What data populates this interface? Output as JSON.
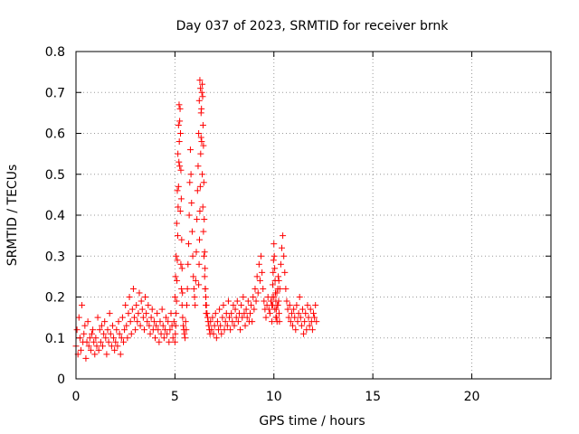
{
  "chart_data": {
    "type": "scatter",
    "title": "Day 037 of 2023, SRMTID for receiver brnk",
    "xlabel": "GPS time / hours",
    "ylabel": "SRMTID / TECUs",
    "xlim": [
      0,
      24
    ],
    "ylim": [
      0,
      0.8
    ],
    "grid": true,
    "marker": "+",
    "color": "#ff0000",
    "xticks": [
      0,
      5,
      10,
      15,
      20
    ],
    "yticks": [
      0,
      0.1,
      0.2,
      0.3,
      0.4,
      0.5,
      0.6,
      0.7,
      0.8
    ],
    "xtick_labels": [
      "0",
      "5",
      "10",
      "15",
      "20"
    ],
    "ytick_labels": [
      "0",
      "0.1",
      "0.2",
      "0.3",
      "0.4",
      "0.5",
      "0.6",
      "0.7",
      "0.8"
    ],
    "series": [
      {
        "name": "SRMTID",
        "x": [
          0.0,
          0.05,
          0.1,
          0.15,
          0.2,
          0.25,
          0.3,
          0.35,
          0.4,
          0.45,
          0.5,
          0.55,
          0.6,
          0.65,
          0.7,
          0.75,
          0.8,
          0.85,
          0.9,
          0.95,
          1.0,
          1.05,
          1.1,
          1.15,
          1.2,
          1.25,
          1.3,
          1.35,
          1.4,
          1.45,
          1.5,
          1.55,
          1.6,
          1.65,
          1.7,
          1.75,
          1.8,
          1.85,
          1.9,
          1.95,
          2.0,
          2.05,
          2.1,
          2.15,
          2.2,
          2.25,
          2.3,
          2.35,
          2.4,
          2.45,
          2.5,
          2.55,
          2.6,
          2.65,
          2.7,
          2.75,
          2.8,
          2.85,
          2.9,
          2.95,
          3.0,
          3.05,
          3.1,
          3.15,
          3.2,
          3.25,
          3.3,
          3.35,
          3.4,
          3.45,
          3.5,
          3.55,
          3.6,
          3.65,
          3.7,
          3.75,
          3.8,
          3.85,
          3.9,
          3.95,
          4.0,
          4.05,
          4.1,
          4.15,
          4.2,
          4.25,
          4.3,
          4.35,
          4.4,
          4.45,
          4.5,
          4.55,
          4.6,
          4.65,
          4.7,
          4.75,
          4.8,
          4.85,
          4.9,
          4.95,
          5.0,
          5.03,
          5.06,
          5.09,
          5.12,
          5.15,
          5.18,
          5.21,
          5.24,
          5.27,
          5.3,
          5.33,
          5.36,
          5.39,
          5.42,
          5.45,
          5.48,
          5.51,
          5.54,
          5.57,
          5.6,
          5.63,
          5.66,
          5.69,
          5.72,
          5.75,
          5.78,
          5.81,
          5.84,
          5.87,
          5.9,
          5.93,
          5.96,
          5.99,
          6.02,
          6.05,
          6.08,
          6.11,
          6.14,
          6.17,
          6.2,
          6.23,
          6.26,
          6.29,
          6.32,
          6.35,
          6.38,
          6.41,
          6.44,
          6.47,
          6.5,
          6.53,
          6.56,
          6.59,
          6.62,
          6.65,
          6.68,
          6.71,
          6.74,
          6.77,
          6.8,
          6.85,
          6.9,
          6.95,
          7.0,
          7.05,
          7.1,
          7.15,
          7.2,
          7.25,
          7.3,
          7.35,
          7.4,
          7.45,
          7.5,
          7.55,
          7.6,
          7.65,
          7.7,
          7.75,
          7.8,
          7.85,
          7.9,
          7.95,
          8.0,
          8.05,
          8.1,
          8.15,
          8.2,
          8.25,
          8.3,
          8.35,
          8.4,
          8.45,
          8.5,
          8.55,
          8.6,
          8.65,
          8.7,
          8.75,
          8.8,
          8.85,
          8.9,
          8.95,
          9.0,
          9.05,
          9.1,
          9.15,
          9.2,
          9.25,
          9.3,
          9.35,
          9.4,
          9.45,
          9.5,
          9.55,
          9.6,
          9.65,
          9.7,
          9.75,
          9.8,
          9.85,
          9.9,
          9.95,
          10.0,
          10.05,
          10.1,
          10.15,
          10.2,
          10.25,
          10.3,
          10.35,
          10.4,
          10.45,
          10.5,
          10.55,
          10.6,
          10.65,
          10.7,
          10.75,
          10.8,
          10.85,
          10.9,
          10.95,
          11.0,
          11.05,
          11.1,
          11.15,
          11.2,
          11.25,
          11.3,
          11.35,
          11.4,
          11.45,
          11.5,
          11.55,
          11.6,
          11.65,
          11.7,
          11.75,
          11.8,
          11.85,
          11.9,
          11.95,
          12.0,
          12.05,
          12.1,
          12.15,
          5.0,
          5.02,
          5.04,
          5.06,
          5.08,
          5.1,
          5.12,
          5.14,
          5.16,
          5.18,
          5.2,
          5.22,
          5.24,
          5.26,
          5.28,
          5.3,
          5.32,
          5.34,
          5.36,
          5.38,
          6.2,
          6.22,
          6.24,
          6.26,
          6.28,
          6.3,
          6.32,
          6.34,
          6.36,
          6.38,
          6.4,
          6.42,
          6.44,
          6.46,
          6.48,
          6.5,
          6.52,
          6.54,
          6.56,
          6.58,
          9.9,
          9.92,
          9.94,
          9.96,
          9.98,
          10.0,
          10.02,
          10.04,
          10.06,
          10.08,
          10.1,
          10.12,
          10.14,
          10.16,
          10.18,
          10.2,
          10.22,
          10.24,
          10.26,
          10.28
        ],
        "y": [
          0.08,
          0.12,
          0.06,
          0.15,
          0.1,
          0.07,
          0.18,
          0.09,
          0.11,
          0.13,
          0.05,
          0.09,
          0.14,
          0.08,
          0.1,
          0.07,
          0.11,
          0.12,
          0.09,
          0.06,
          0.1,
          0.08,
          0.15,
          0.07,
          0.12,
          0.09,
          0.13,
          0.08,
          0.11,
          0.14,
          0.1,
          0.06,
          0.12,
          0.09,
          0.16,
          0.11,
          0.08,
          0.13,
          0.1,
          0.07,
          0.09,
          0.12,
          0.08,
          0.14,
          0.11,
          0.06,
          0.1,
          0.15,
          0.09,
          0.12,
          0.18,
          0.13,
          0.1,
          0.16,
          0.2,
          0.14,
          0.11,
          0.17,
          0.22,
          0.15,
          0.12,
          0.18,
          0.14,
          0.16,
          0.21,
          0.13,
          0.19,
          0.17,
          0.15,
          0.12,
          0.2,
          0.16,
          0.14,
          0.18,
          0.13,
          0.11,
          0.15,
          0.17,
          0.12,
          0.14,
          0.1,
          0.13,
          0.16,
          0.12,
          0.09,
          0.14,
          0.11,
          0.17,
          0.13,
          0.1,
          0.12,
          0.15,
          0.11,
          0.14,
          0.09,
          0.12,
          0.16,
          0.13,
          0.1,
          0.14,
          0.2,
          0.25,
          0.3,
          0.38,
          0.46,
          0.55,
          0.62,
          0.67,
          0.52,
          0.41,
          0.28,
          0.22,
          0.18,
          0.15,
          0.13,
          0.12,
          0.11,
          0.1,
          0.14,
          0.12,
          0.18,
          0.22,
          0.28,
          0.33,
          0.4,
          0.48,
          0.56,
          0.5,
          0.43,
          0.36,
          0.3,
          0.25,
          0.22,
          0.2,
          0.18,
          0.24,
          0.31,
          0.39,
          0.46,
          0.52,
          0.6,
          0.68,
          0.73,
          0.71,
          0.65,
          0.58,
          0.5,
          0.42,
          0.36,
          0.3,
          0.25,
          0.22,
          0.2,
          0.18,
          0.16,
          0.15,
          0.14,
          0.13,
          0.12,
          0.11,
          0.14,
          0.12,
          0.15,
          0.11,
          0.13,
          0.16,
          0.1,
          0.14,
          0.12,
          0.17,
          0.13,
          0.11,
          0.15,
          0.18,
          0.12,
          0.14,
          0.16,
          0.13,
          0.19,
          0.15,
          0.12,
          0.16,
          0.14,
          0.18,
          0.13,
          0.17,
          0.15,
          0.19,
          0.14,
          0.16,
          0.12,
          0.18,
          0.15,
          0.2,
          0.16,
          0.13,
          0.17,
          0.15,
          0.19,
          0.14,
          0.16,
          0.18,
          0.14,
          0.2,
          0.17,
          0.22,
          0.19,
          0.25,
          0.21,
          0.28,
          0.24,
          0.3,
          0.26,
          0.22,
          0.19,
          0.17,
          0.15,
          0.18,
          0.2,
          0.17,
          0.16,
          0.19,
          0.14,
          0.18,
          0.2,
          0.17,
          0.15,
          0.21,
          0.18,
          0.24,
          0.22,
          0.28,
          0.32,
          0.35,
          0.3,
          0.26,
          0.22,
          0.19,
          0.17,
          0.15,
          0.18,
          0.14,
          0.16,
          0.13,
          0.17,
          0.15,
          0.12,
          0.18,
          0.14,
          0.16,
          0.2,
          0.15,
          0.13,
          0.17,
          0.11,
          0.14,
          0.16,
          0.12,
          0.18,
          0.15,
          0.13,
          0.17,
          0.14,
          0.12,
          0.16,
          0.15,
          0.18,
          0.14,
          0.09,
          0.11,
          0.13,
          0.16,
          0.19,
          0.24,
          0.29,
          0.35,
          0.42,
          0.47,
          0.53,
          0.58,
          0.63,
          0.66,
          0.6,
          0.51,
          0.44,
          0.34,
          0.27,
          0.21,
          0.23,
          0.28,
          0.34,
          0.41,
          0.47,
          0.55,
          0.59,
          0.66,
          0.7,
          0.72,
          0.69,
          0.62,
          0.57,
          0.48,
          0.39,
          0.31,
          0.27,
          0.22,
          0.18,
          0.16,
          0.18,
          0.2,
          0.23,
          0.26,
          0.29,
          0.33,
          0.3,
          0.27,
          0.24,
          0.21,
          0.19,
          0.17,
          0.15,
          0.14,
          0.18,
          0.22,
          0.25,
          0.19,
          0.16,
          0.14
        ]
      }
    ]
  }
}
